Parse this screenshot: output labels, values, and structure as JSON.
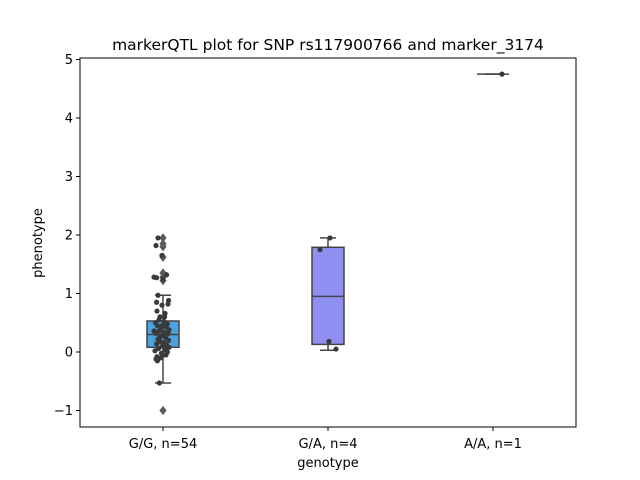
{
  "chart_data": {
    "type": "box",
    "title": "markerQTL plot for SNP rs117900766 and marker_3174",
    "xlabel": "genotype",
    "ylabel": "phenotype",
    "ylim": [
      -1.3,
      5.05
    ],
    "yticks": [
      -1,
      0,
      1,
      2,
      3,
      4,
      5
    ],
    "ytick_labels": [
      "−1",
      "0",
      "1",
      "2",
      "3",
      "4",
      "5"
    ],
    "categories": [
      "G/G, n=54",
      "G/A, n=4",
      "A/A, n=1"
    ],
    "grid": false,
    "legend": "none",
    "colors": {
      "box_gg": "#4aa3df",
      "box_ga": "#9090f2",
      "line": "#444444",
      "point": "#3a3a3a",
      "outlier": "#5a5a5a"
    },
    "groups": [
      {
        "label": "G/G, n=54",
        "box": {
          "q1": 0.08,
          "median": 0.3,
          "q3": 0.53,
          "whisker_low": -0.53,
          "whisker_high": 0.97
        },
        "outliers": [
          1.95,
          1.85,
          1.8,
          1.62,
          1.35,
          1.28,
          1.22,
          -1.0
        ],
        "points": [
          [
            -0.25,
            1.95
          ],
          [
            -0.35,
            1.82
          ],
          [
            -0.05,
            1.65
          ],
          [
            -0.32,
            1.27
          ],
          [
            0.18,
            1.32
          ],
          [
            -0.45,
            1.28
          ],
          [
            0.0,
            1.25
          ],
          [
            -0.25,
            0.97
          ],
          [
            0.28,
            0.88
          ],
          [
            -0.32,
            0.85
          ],
          [
            0.25,
            0.82
          ],
          [
            -0.05,
            0.8
          ],
          [
            -0.3,
            0.7
          ],
          [
            0.1,
            0.66
          ],
          [
            -0.15,
            0.6
          ],
          [
            -0.2,
            0.55
          ],
          [
            0.05,
            0.52
          ],
          [
            -0.38,
            0.5
          ],
          [
            0.22,
            0.48
          ],
          [
            -0.28,
            0.45
          ],
          [
            0.15,
            0.43
          ],
          [
            -0.1,
            0.4
          ],
          [
            0.3,
            0.38
          ],
          [
            -0.2,
            0.36
          ],
          [
            0.05,
            0.34
          ],
          [
            -0.35,
            0.32
          ],
          [
            0.2,
            0.3
          ],
          [
            -0.05,
            0.28
          ],
          [
            0.12,
            0.25
          ],
          [
            -0.25,
            0.22
          ],
          [
            0.28,
            0.2
          ],
          [
            -0.15,
            0.18
          ],
          [
            0.05,
            0.16
          ],
          [
            -0.32,
            0.14
          ],
          [
            0.18,
            0.12
          ],
          [
            -0.02,
            0.1
          ],
          [
            0.3,
            0.08
          ],
          [
            -0.22,
            0.06
          ],
          [
            0.1,
            0.04
          ],
          [
            -0.4,
            0.02
          ],
          [
            0.22,
            0.0
          ],
          [
            -0.08,
            -0.02
          ],
          [
            0.02,
            -0.05
          ],
          [
            -0.3,
            -0.08
          ],
          [
            0.15,
            -0.05
          ],
          [
            -0.12,
            -0.1
          ],
          [
            -0.35,
            -0.12
          ],
          [
            -0.28,
            -0.15
          ],
          [
            -0.05,
            0.45
          ],
          [
            0.08,
            0.6
          ],
          [
            -0.15,
            0.26
          ],
          [
            0.26,
            0.32
          ],
          [
            -0.45,
            0.36
          ],
          [
            -0.18,
            -0.53
          ]
        ]
      },
      {
        "label": "G/A, n=4",
        "box": {
          "q1": 0.13,
          "median": 0.95,
          "q3": 1.79,
          "whisker_low": 0.03,
          "whisker_high": 1.95
        },
        "outliers": [],
        "points": [
          [
            0.1,
            1.95
          ],
          [
            -0.4,
            1.75
          ],
          [
            0.05,
            0.18
          ],
          [
            0.4,
            0.05
          ]
        ]
      },
      {
        "label": "A/A, n=1",
        "box": {
          "q1": 4.75,
          "median": 4.75,
          "q3": 4.75,
          "whisker_low": 4.75,
          "whisker_high": 4.75
        },
        "outliers": [],
        "points": [
          [
            0.45,
            4.75
          ]
        ]
      }
    ]
  }
}
